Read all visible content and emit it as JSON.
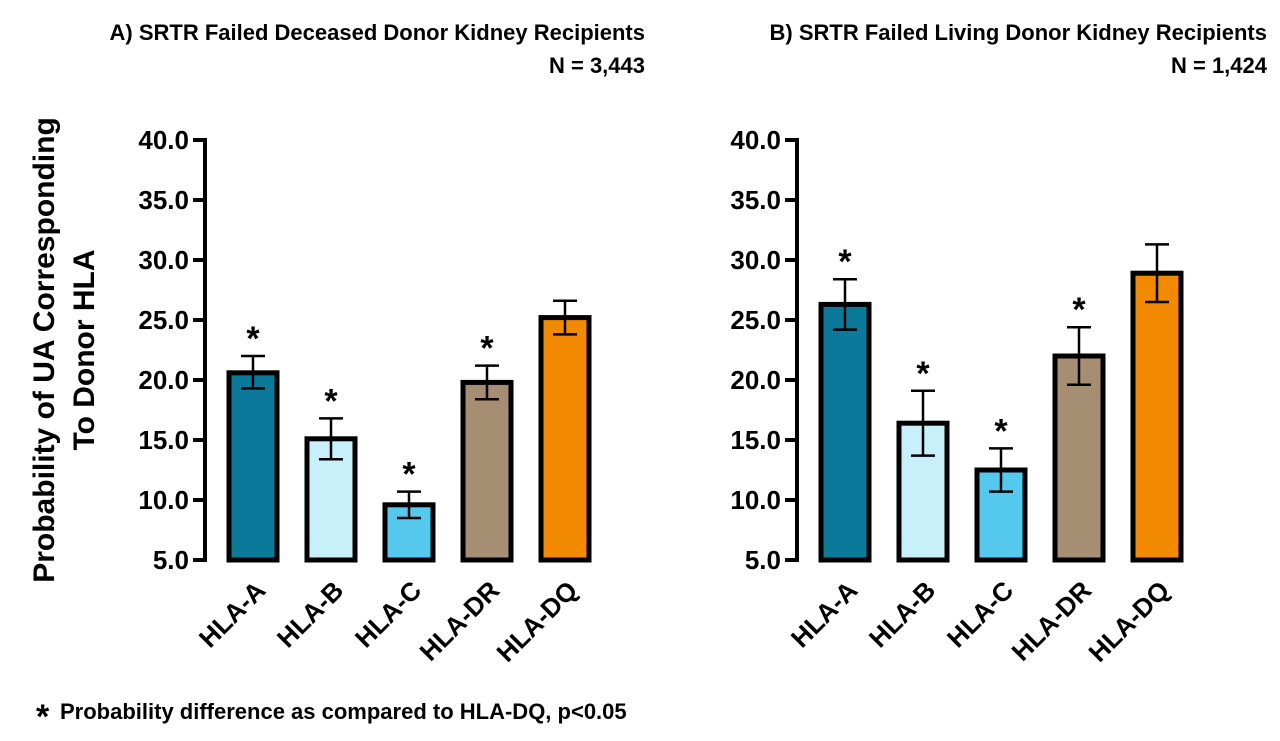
{
  "y_axis_label_line1": "Probability of UA Corresponding",
  "y_axis_label_line2": "To Donor HLA",
  "footnote_symbol": "*",
  "footnote_text": "Probability difference as compared to HLA-DQ, p<0.05",
  "colors": {
    "HLA-A": "#0b7a9a",
    "HLA-B": "#c8f0fb",
    "HLA-C": "#55c8ee",
    "HLA-DR": "#a58e72",
    "HLA-DQ": "#f28a00"
  },
  "chart_data": [
    {
      "type": "bar",
      "title": "A) SRTR Failed Deceased Donor Kidney Recipients",
      "subtitle": "N = 3,443",
      "categories": [
        "HLA-A",
        "HLA-B",
        "HLA-C",
        "HLA-DR",
        "HLA-DQ"
      ],
      "values": [
        20.6,
        15.1,
        9.6,
        19.8,
        25.2
      ],
      "error_low": [
        19.3,
        13.4,
        8.5,
        18.4,
        23.8
      ],
      "error_high": [
        22.0,
        16.8,
        10.7,
        21.2,
        26.6
      ],
      "significant": [
        true,
        true,
        true,
        true,
        false
      ],
      "ylim": [
        5.0,
        40.0
      ],
      "yticks": [
        "5.0",
        "10.0",
        "15.0",
        "20.0",
        "25.0",
        "30.0",
        "35.0",
        "40.0"
      ]
    },
    {
      "type": "bar",
      "title": "B) SRTR Failed Living Donor Kidney Recipients",
      "subtitle": "N = 1,424",
      "categories": [
        "HLA-A",
        "HLA-B",
        "HLA-C",
        "HLA-DR",
        "HLA-DQ"
      ],
      "values": [
        26.3,
        16.4,
        12.5,
        22.0,
        28.9
      ],
      "error_low": [
        24.2,
        13.7,
        10.7,
        19.6,
        26.5
      ],
      "error_high": [
        28.4,
        19.1,
        14.3,
        24.4,
        31.3
      ],
      "significant": [
        true,
        true,
        true,
        true,
        false
      ],
      "ylim": [
        5.0,
        40.0
      ],
      "yticks": [
        "5.0",
        "10.0",
        "15.0",
        "20.0",
        "25.0",
        "30.0",
        "35.0",
        "40.0"
      ]
    }
  ]
}
